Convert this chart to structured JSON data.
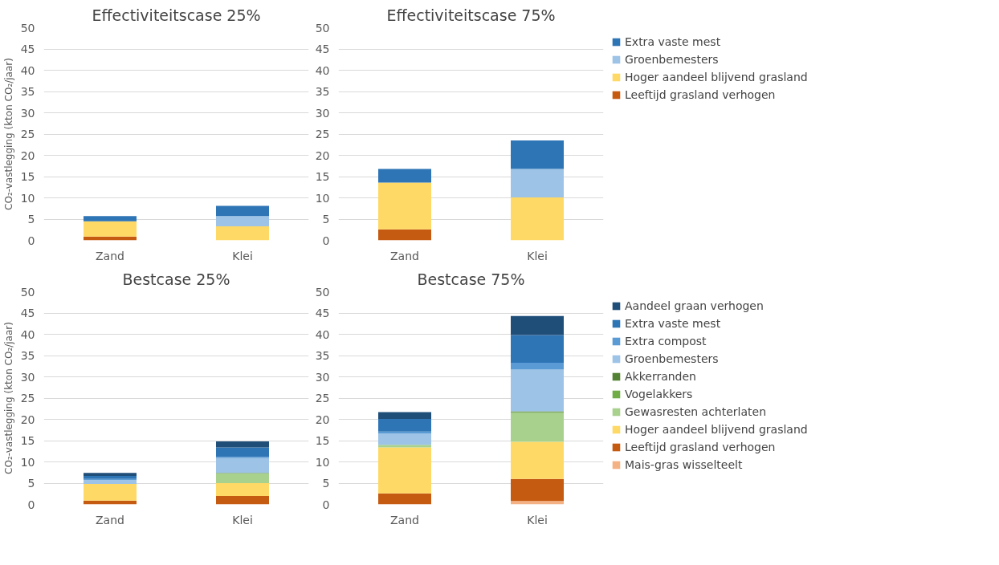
{
  "chart_data": [
    {
      "type": "bar",
      "stacked": true,
      "title": "Effectiviteitscase 25%",
      "ylabel": "CO₂-vastlegging (kton CO₂/jaar)",
      "categories": [
        "Zand",
        "Klei"
      ],
      "ylim": [
        0,
        50
      ],
      "yticks": [
        0,
        5,
        10,
        15,
        20,
        25,
        30,
        35,
        40,
        45,
        50
      ],
      "grid": "y",
      "legend": false,
      "series": [
        {
          "color": "#c55a11",
          "values": [
            0.9,
            0
          ]
        },
        {
          "color": "#ffd966",
          "values": [
            3.6,
            3.3
          ]
        },
        {
          "color": "#9dc3e6",
          "values": [
            0,
            2.4
          ]
        },
        {
          "color": "#2e75b6",
          "values": [
            1.2,
            2.4
          ]
        }
      ]
    },
    {
      "type": "bar",
      "stacked": true,
      "title": "Effectiviteitscase 75%",
      "categories": [
        "Zand",
        "Klei"
      ],
      "ylim": [
        0,
        50
      ],
      "yticks": [
        0,
        5,
        10,
        15,
        20,
        25,
        30,
        35,
        40,
        45,
        50
      ],
      "grid": "y",
      "legend": "right",
      "series": [
        {
          "name": "Leeftijd grasland verhogen",
          "color": "#c55a11",
          "values": [
            2.6,
            0
          ]
        },
        {
          "name": "Hoger aandeel blijvend grasland",
          "color": "#ffd966",
          "values": [
            11.0,
            10.1
          ]
        },
        {
          "name": "Groenbemesters",
          "color": "#9dc3e6",
          "values": [
            0,
            6.7
          ]
        },
        {
          "name": "Extra vaste mest",
          "color": "#2e75b6",
          "values": [
            3.2,
            6.7
          ]
        }
      ]
    },
    {
      "type": "bar",
      "stacked": true,
      "title": "Bestcase 25%",
      "ylabel": "CO₂-vastlegging (kton CO₂/jaar)",
      "categories": [
        "Zand",
        "Klei"
      ],
      "ylim": [
        0,
        50
      ],
      "yticks": [
        0,
        5,
        10,
        15,
        20,
        25,
        30,
        35,
        40,
        45,
        50
      ],
      "grid": "y",
      "legend": false,
      "series": [
        {
          "color": "#f4b183",
          "values": [
            0,
            0
          ]
        },
        {
          "color": "#c55a11",
          "values": [
            0.9,
            2.0
          ]
        },
        {
          "color": "#ffd966",
          "values": [
            3.9,
            3.0
          ]
        },
        {
          "color": "#a9d18e",
          "values": [
            0,
            2.3
          ]
        },
        {
          "color": "#70ad47",
          "values": [
            0,
            0
          ]
        },
        {
          "color": "#548235",
          "values": [
            0,
            0.1
          ]
        },
        {
          "color": "#9dc3e6",
          "values": [
            0.9,
            3.5
          ]
        },
        {
          "color": "#5b9bd5",
          "values": [
            0.3,
            0.3
          ]
        },
        {
          "color": "#2e75b6",
          "values": [
            0.7,
            2.2
          ]
        },
        {
          "color": "#1f4e79",
          "values": [
            0.7,
            1.4
          ]
        }
      ]
    },
    {
      "type": "bar",
      "stacked": true,
      "title": "Bestcase 75%",
      "categories": [
        "Zand",
        "Klei"
      ],
      "ylim": [
        0,
        50
      ],
      "yticks": [
        0,
        5,
        10,
        15,
        20,
        25,
        30,
        35,
        40,
        45,
        50
      ],
      "grid": "y",
      "legend": "right",
      "series": [
        {
          "name": "Mais-gras wisselteelt",
          "color": "#f4b183",
          "values": [
            0,
            0.8
          ]
        },
        {
          "name": "Leeftijd grasland verhogen",
          "color": "#c55a11",
          "values": [
            2.6,
            5.2
          ]
        },
        {
          "name": "Hoger aandeel blijvend grasland",
          "color": "#ffd966",
          "values": [
            10.8,
            8.7
          ]
        },
        {
          "name": "Gewasresten achterlaten",
          "color": "#a9d18e",
          "values": [
            0.6,
            6.8
          ]
        },
        {
          "name": "Vogelakkers",
          "color": "#70ad47",
          "values": [
            0,
            0.2
          ]
        },
        {
          "name": "Akkerranden",
          "color": "#548235",
          "values": [
            0,
            0.2
          ]
        },
        {
          "name": "Groenbemesters",
          "color": "#9dc3e6",
          "values": [
            2.7,
            9.8
          ]
        },
        {
          "name": "Extra compost",
          "color": "#5b9bd5",
          "values": [
            0.4,
            1.6
          ]
        },
        {
          "name": "Extra vaste mest",
          "color": "#2e75b6",
          "values": [
            3.0,
            6.5
          ]
        },
        {
          "name": "Aandeel graan verhogen",
          "color": "#1f4e79",
          "values": [
            1.6,
            4.5
          ]
        }
      ]
    }
  ]
}
